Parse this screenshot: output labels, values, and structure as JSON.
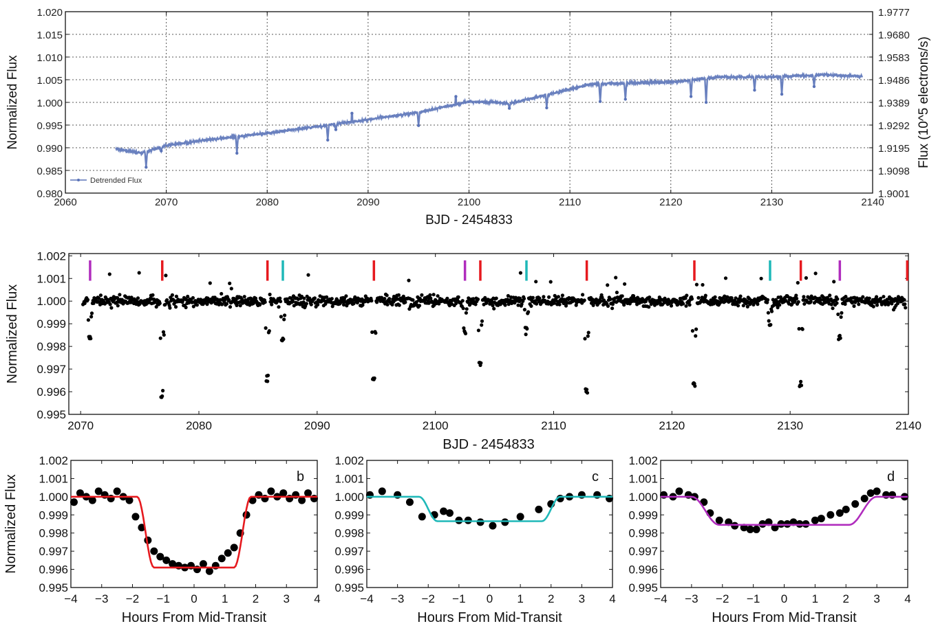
{
  "chart_data": [
    {
      "id": "p1",
      "type": "line",
      "xlabel": "BJD - 2454833",
      "ylabel": "Normalized Flux",
      "y2label": "Flux (10^5 electrons/s)",
      "xlim": [
        2060,
        2140
      ],
      "ylim": [
        0.98,
        1.02
      ],
      "xticks": [
        "2060",
        "2070",
        "2080",
        "2090",
        "2100",
        "2110",
        "2120",
        "2130",
        "2140"
      ],
      "yticks": [
        "0.980",
        "0.985",
        "0.990",
        "0.995",
        "1.000",
        "1.005",
        "1.010",
        "1.015",
        "1.020"
      ],
      "y2ticks": [
        "1.9001",
        "1.9098",
        "1.9195",
        "1.9292",
        "1.9389",
        "1.9486",
        "1.9583",
        "1.9680",
        "1.9777"
      ],
      "grid": true,
      "legend": "bottom-left",
      "series": [
        {
          "name": "Detrended Flux",
          "color": "#5a73b8",
          "x": [
            2065,
            2067.5,
            2070,
            2075,
            2080,
            2085,
            2090,
            2095,
            2100,
            2104,
            2108,
            2112,
            2115,
            2120,
            2125,
            2130,
            2135,
            2139
          ],
          "y": [
            0.9897,
            0.9888,
            0.9905,
            0.992,
            0.9932,
            0.9947,
            0.9962,
            0.9978,
            1.0002,
            0.9998,
            1.0018,
            1.004,
            1.0042,
            1.0045,
            1.0056,
            1.0056,
            1.0061,
            1.0057
          ]
        }
      ],
      "dips": [
        {
          "x": 2068.0,
          "y": 0.9857
        },
        {
          "x": 2069.5,
          "y": 0.9893
        },
        {
          "x": 2077.0,
          "y": 0.9888
        },
        {
          "x": 2086.0,
          "y": 0.9917
        },
        {
          "x": 2086.8,
          "y": 0.994
        },
        {
          "x": 2095.0,
          "y": 0.9949
        },
        {
          "x": 2104.0,
          "y": 0.9987
        },
        {
          "x": 2107.7,
          "y": 0.9988
        },
        {
          "x": 2113.0,
          "y": 1.0002
        },
        {
          "x": 2115.5,
          "y": 1.0007
        },
        {
          "x": 2122.0,
          "y": 1.0013
        },
        {
          "x": 2123.5,
          "y": 1.0
        },
        {
          "x": 2128.3,
          "y": 1.0027
        },
        {
          "x": 2131.0,
          "y": 1.0018
        },
        {
          "x": 2134.2,
          "y": 1.0035
        }
      ],
      "spikes": [
        {
          "x": 2088.4,
          "y": 0.9976
        },
        {
          "x": 2098.7,
          "y": 1.0013
        }
      ]
    },
    {
      "id": "p2",
      "type": "scatter",
      "xlabel": "BJD - 2454833",
      "ylabel": "Normalized Flux",
      "xlim": [
        2069,
        2140
      ],
      "ylim": [
        0.995,
        1.0021
      ],
      "xticks": [
        "2070",
        "2080",
        "2090",
        "2100",
        "2110",
        "2120",
        "2130",
        "2140"
      ],
      "yticks": [
        "0.995",
        "0.996",
        "0.997",
        "0.998",
        "0.999",
        "1.000",
        "1.001",
        "1.002"
      ],
      "grid": false,
      "transits": [
        {
          "x": 2070.8,
          "depth": 0.9982,
          "color": "#b02cbd"
        },
        {
          "x": 2076.9,
          "depth": 0.9957,
          "color": "#e6191e"
        },
        {
          "x": 2085.8,
          "depth": 0.9964,
          "color": "#e6191e"
        },
        {
          "x": 2087.1,
          "depth": 0.9981,
          "color": "#1fb8b8"
        },
        {
          "x": 2094.8,
          "depth": 0.9963,
          "color": "#e6191e"
        },
        {
          "x": 2102.5,
          "depth": 0.9985,
          "color": "#b02cbd"
        },
        {
          "x": 2103.8,
          "depth": 0.9971,
          "color": "#e6191e"
        },
        {
          "x": 2107.7,
          "depth": 0.9985,
          "color": "#1fb8b8"
        },
        {
          "x": 2112.8,
          "depth": 0.9959,
          "color": "#e6191e"
        },
        {
          "x": 2121.9,
          "depth": 0.9962,
          "color": "#e6191e"
        },
        {
          "x": 2128.3,
          "depth": 0.9988,
          "color": "#1fb8b8"
        },
        {
          "x": 2130.9,
          "depth": 0.9962,
          "color": "#e6191e"
        },
        {
          "x": 2134.2,
          "depth": 0.9982,
          "color": "#b02cbd"
        },
        {
          "x": 2139.9,
          "depth": 0.999,
          "color": "#e6191e"
        }
      ]
    },
    {
      "id": "pb",
      "type": "scatter",
      "label": "b",
      "xlabel": "Hours From Mid-Transit",
      "ylabel": "Normalized Flux",
      "xlim": [
        -4,
        4
      ],
      "ylim": [
        0.995,
        1.002
      ],
      "xticks": [
        "−4",
        "−3",
        "−2",
        "−1",
        "0",
        "1",
        "2",
        "3",
        "4"
      ],
      "yticks": [
        "0.995",
        "0.996",
        "0.997",
        "0.998",
        "0.999",
        "1.000",
        "1.001",
        "1.002"
      ],
      "model": {
        "depth": 0.0039,
        "t1": 1.85,
        "t2": 1.3,
        "color": "#e6191e"
      },
      "x": [
        -3.9,
        -3.7,
        -3.5,
        -3.3,
        -3.1,
        -2.9,
        -2.7,
        -2.5,
        -2.3,
        -2.1,
        -1.9,
        -1.7,
        -1.5,
        -1.3,
        -1.1,
        -0.9,
        -0.7,
        -0.5,
        -0.3,
        -0.1,
        0.1,
        0.3,
        0.5,
        0.7,
        0.9,
        1.1,
        1.3,
        1.5,
        1.7,
        1.9,
        2.1,
        2.3,
        2.5,
        2.7,
        2.9,
        3.1,
        3.3,
        3.5,
        3.7,
        3.9
      ],
      "y": [
        0.9997,
        1.0002,
        1.0,
        0.9998,
        1.0003,
        1.0001,
        0.9999,
        1.0003,
        1.0,
        0.9998,
        0.9989,
        0.9983,
        0.9976,
        0.997,
        0.9967,
        0.9965,
        0.9963,
        0.9962,
        0.9961,
        0.9962,
        0.996,
        0.9963,
        0.9959,
        0.9962,
        0.9966,
        0.9969,
        0.9972,
        0.998,
        0.999,
        0.9998,
        1.0001,
        0.9999,
        1.0003,
        1.0,
        1.0002,
        0.9999,
        1.0001,
        0.9998,
        1.0002,
        0.9999
      ]
    },
    {
      "id": "pc",
      "type": "scatter",
      "label": "c",
      "xlabel": "Hours From Mid-Transit",
      "ylabel": "",
      "xlim": [
        -4,
        4
      ],
      "ylim": [
        0.995,
        1.002
      ],
      "xticks": [
        "−4",
        "−3",
        "−2",
        "−1",
        "0",
        "1",
        "2",
        "3",
        "4"
      ],
      "yticks": [
        "0.995",
        "0.996",
        "0.997",
        "0.998",
        "0.999",
        "1.000",
        "1.001",
        "1.002"
      ],
      "model": {
        "depth": 0.00135,
        "t1": 2.3,
        "t2": 1.7,
        "color": "#1fb8b8"
      },
      "x": [
        -3.9,
        -3.5,
        -3.0,
        -2.6,
        -2.2,
        -1.8,
        -1.5,
        -1.3,
        -1.0,
        -0.7,
        -0.3,
        0.1,
        0.5,
        1.0,
        1.6,
        2.0,
        2.3,
        2.6,
        3.0,
        3.5,
        3.9
      ],
      "y": [
        1.0001,
        1.0003,
        1.0001,
        0.9997,
        0.9989,
        0.999,
        0.9992,
        0.9991,
        0.9987,
        0.9987,
        0.9986,
        0.9984,
        0.9986,
        0.9989,
        0.9993,
        0.9996,
        0.9999,
        1.0,
        1.0001,
        1.0001,
        0.9999
      ]
    },
    {
      "id": "pd",
      "type": "scatter",
      "label": "d",
      "xlabel": "Hours From Mid-Transit",
      "ylabel": "",
      "xlim": [
        -4,
        4
      ],
      "ylim": [
        0.995,
        1.002
      ],
      "xticks": [
        "−4",
        "−3",
        "−2",
        "−1",
        "0",
        "1",
        "2",
        "3",
        "4"
      ],
      "yticks": [
        "0.995",
        "0.996",
        "0.997",
        "0.998",
        "0.999",
        "1.000",
        "1.001",
        "1.002"
      ],
      "model": {
        "depth": 0.00155,
        "t1": 3.0,
        "t2": 2.1,
        "color": "#b02cbd"
      },
      "x": [
        -3.9,
        -3.6,
        -3.4,
        -3.1,
        -2.9,
        -2.6,
        -2.4,
        -2.1,
        -1.8,
        -1.6,
        -1.3,
        -1.1,
        -0.9,
        -0.7,
        -0.5,
        -0.3,
        -0.1,
        0.1,
        0.3,
        0.5,
        0.7,
        1.0,
        1.2,
        1.5,
        1.8,
        2.0,
        2.3,
        2.6,
        2.8,
        3.0,
        3.3,
        3.5,
        3.9
      ],
      "y": [
        1.0001,
        1.0,
        1.0003,
        1.0001,
        1.0,
        0.9997,
        0.9991,
        0.9987,
        0.9986,
        0.9984,
        0.9983,
        0.9982,
        0.9982,
        0.9985,
        0.9986,
        0.9983,
        0.9985,
        0.9985,
        0.9986,
        0.9985,
        0.9985,
        0.9987,
        0.9988,
        0.999,
        0.9991,
        0.9993,
        0.9996,
        0.9999,
        1.0002,
        1.0003,
        1.0001,
        1.0001,
        1.0
      ]
    }
  ]
}
